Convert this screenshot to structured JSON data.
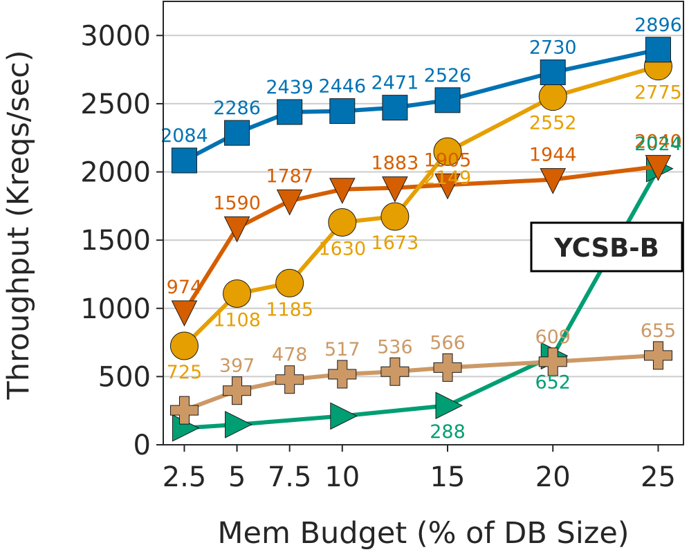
{
  "chart_data": {
    "type": "line",
    "title": "",
    "xlabel": "Mem Budget (% of DB Size)",
    "ylabel": "Throughput (Kreqs/sec)",
    "annotation": "YCSB-B",
    "annotation_position": "right-middle",
    "xlim": [
      1.5,
      26.2
    ],
    "ylim": [
      0,
      3250
    ],
    "grid": "y",
    "xticks": [
      2.5,
      5,
      7.5,
      10,
      15,
      20,
      25
    ],
    "xtick_labels": [
      "2.5",
      "5",
      "7.5",
      "10",
      "15",
      "20",
      "25"
    ],
    "yticks": [
      0,
      500,
      1000,
      1500,
      2000,
      2500,
      3000
    ],
    "ytick_labels": [
      "0",
      "500",
      "1000",
      "1500",
      "2000",
      "2500",
      "3000"
    ],
    "series": [
      {
        "name": "blue-squares",
        "color": "#0072b2",
        "marker": "square",
        "x": [
          2.5,
          5,
          7.5,
          10,
          12.5,
          15,
          20,
          25
        ],
        "values": [
          2084,
          2286,
          2439,
          2446,
          2471,
          2526,
          2730,
          2896
        ],
        "labels": [
          "2084",
          "2286",
          "2439",
          "2446",
          "2471",
          "2526",
          "2730",
          "2896"
        ],
        "label_pos": [
          "above",
          "above",
          "above",
          "above",
          "above",
          "above",
          "above",
          "above"
        ]
      },
      {
        "name": "orange-circles",
        "color": "#e69f00",
        "marker": "circle",
        "x": [
          2.5,
          5,
          7.5,
          10,
          12.5,
          15,
          20,
          25
        ],
        "values": [
          725,
          1108,
          1185,
          1630,
          1673,
          2149,
          2552,
          2775
        ],
        "labels": [
          "725",
          "1108",
          "1185",
          "1630",
          "1673",
          "2149",
          "2552",
          "2775"
        ],
        "label_pos": [
          "below",
          "below",
          "below",
          "below",
          "below",
          "below",
          "below",
          "below"
        ]
      },
      {
        "name": "vermillion-triangles",
        "color": "#d55e00",
        "marker": "triangle-down",
        "x": [
          2.5,
          5,
          7.5,
          10,
          12.5,
          15,
          20,
          25
        ],
        "values": [
          974,
          1590,
          1787,
          1872,
          1883,
          1905,
          1944,
          2040
        ],
        "labels": [
          "974",
          "1590",
          "1787",
          "",
          "1883",
          "1905",
          "1944",
          "2040"
        ],
        "label_pos": [
          "above",
          "above",
          "above",
          "above",
          "above",
          "above",
          "above",
          "above"
        ]
      },
      {
        "name": "tan-plus",
        "color": "#cc9966",
        "marker": "plus",
        "x": [
          2.5,
          5,
          7.5,
          10,
          12.5,
          15,
          20,
          25
        ],
        "values": [
          253,
          397,
          478,
          517,
          536,
          566,
          609,
          655
        ],
        "labels": [
          "",
          "397",
          "478",
          "517",
          "536",
          "566",
          "609",
          "655"
        ],
        "label_pos": [
          "above",
          "above",
          "above",
          "above",
          "above",
          "above",
          "above",
          "above"
        ]
      },
      {
        "name": "green-triangles",
        "color": "#009e73",
        "marker": "triangle-right",
        "x": [
          2.5,
          5,
          10,
          15,
          20,
          25
        ],
        "values": [
          123,
          148,
          211,
          288,
          652,
          2024
        ],
        "labels": [
          "",
          "",
          "",
          "288",
          "652",
          "2024"
        ],
        "label_pos": [
          "below",
          "below",
          "below",
          "below",
          "below",
          "above"
        ]
      }
    ]
  }
}
